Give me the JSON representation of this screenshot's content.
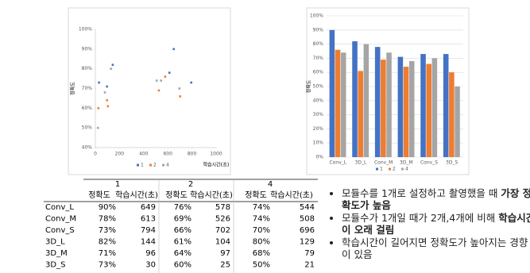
{
  "chart_data": [
    {
      "type": "scatter",
      "xlabel": "학습시간(초)",
      "ylabel": "정확도",
      "xlim": [
        0,
        1000
      ],
      "xticks": [
        0,
        200,
        400,
        600,
        800,
        1000
      ],
      "ylim": [
        40,
        100
      ],
      "yticks": [
        {
          "value": 40,
          "label": "40%"
        },
        {
          "value": 50,
          "label": "50%"
        },
        {
          "value": 60,
          "label": "60%"
        },
        {
          "value": 70,
          "label": "70%"
        },
        {
          "value": 80,
          "label": "80%"
        },
        {
          "value": 90,
          "label": "90%"
        },
        {
          "value": 100,
          "label": "100%"
        }
      ],
      "grid": false,
      "legend": "bottom",
      "series": [
        {
          "name": "1",
          "color": "#4472c4",
          "x": [
            649,
            613,
            794,
            144,
            96,
            30
          ],
          "values": [
            90,
            78,
            73,
            82,
            71,
            73
          ]
        },
        {
          "name": "2",
          "color": "#ed7d31",
          "x": [
            578,
            526,
            702,
            104,
            97,
            25
          ],
          "values": [
            76,
            69,
            66,
            61,
            64,
            60
          ]
        },
        {
          "name": "4",
          "color": "#a5a5a5",
          "x": [
            544,
            508,
            696,
            129,
            79,
            21
          ],
          "values": [
            74,
            74,
            70,
            80,
            68,
            50
          ]
        }
      ]
    },
    {
      "type": "bar",
      "ylabel": "정확도",
      "categories": [
        "Conv_L",
        "3D_L",
        "Conv_M",
        "3D_M",
        "Conv_S",
        "3D_S"
      ],
      "ylim": [
        0,
        100
      ],
      "yticks": [
        {
          "value": 0,
          "label": "0%"
        },
        {
          "value": 10,
          "label": "10%"
        },
        {
          "value": 20,
          "label": "20%"
        },
        {
          "value": 30,
          "label": "30%"
        },
        {
          "value": 40,
          "label": "40%"
        },
        {
          "value": 50,
          "label": "50%"
        },
        {
          "value": 60,
          "label": "60%"
        },
        {
          "value": 70,
          "label": "70%"
        },
        {
          "value": 80,
          "label": "80%"
        },
        {
          "value": 90,
          "label": "90%"
        },
        {
          "value": 100,
          "label": "100%"
        }
      ],
      "grid": true,
      "legend": "bottom",
      "series": [
        {
          "name": "1",
          "color": "#4472c4",
          "values": [
            90,
            82,
            78,
            71,
            73,
            73
          ]
        },
        {
          "name": "2",
          "color": "#ed7d31",
          "values": [
            76,
            61,
            69,
            64,
            66,
            60
          ]
        },
        {
          "name": "4",
          "color": "#a5a5a5",
          "values": [
            74,
            80,
            74,
            68,
            70,
            50
          ]
        }
      ]
    }
  ],
  "table": {
    "groups": [
      "1",
      "2",
      "4"
    ],
    "subheaders": [
      "정확도",
      "학습시간(초)",
      "정확도",
      "학습시간(초)",
      "정확도",
      "학습시간(초)"
    ],
    "rows": [
      [
        "Conv_L",
        "90%",
        "649",
        "76%",
        "578",
        "74%",
        "544"
      ],
      [
        "Conv_M",
        "78%",
        "613",
        "69%",
        "526",
        "74%",
        "508"
      ],
      [
        "Conv_S",
        "73%",
        "794",
        "66%",
        "702",
        "70%",
        "696"
      ],
      [
        "3D_L",
        "82%",
        "144",
        "61%",
        "104",
        "80%",
        "129"
      ],
      [
        "3D_M",
        "71%",
        "96",
        "64%",
        "97",
        "68%",
        "79"
      ],
      [
        "3D_S",
        "73%",
        "30",
        "60%",
        "25",
        "50%",
        "21"
      ]
    ]
  },
  "bullets": [
    [
      {
        "text": "모듈수를 1개로 설정하고 촬영했을 때 "
      },
      {
        "text": "가장 정확도가 높음",
        "bold": true
      }
    ],
    [
      {
        "text": "모듈수가 1개일 때가 2개,4개에 비해 "
      },
      {
        "text": "학습시간이 오래 걸림",
        "bold": true
      }
    ],
    [
      {
        "text": "학습시간이 길어지면 정확도가 높아지는 경향이 있음"
      }
    ]
  ]
}
